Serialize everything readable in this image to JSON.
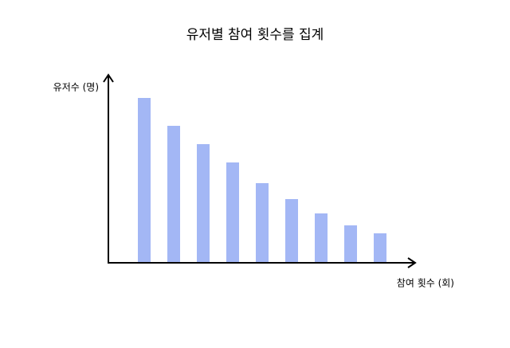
{
  "chart_data": {
    "type": "bar",
    "title": "유저별 참여 횟수를 집계",
    "y_label": "유저수 (명)",
    "x_label": "참여 횟수 (회)",
    "categories": [
      null,
      null,
      null,
      null,
      null,
      null,
      null,
      null,
      null
    ],
    "values": [
      207,
      172,
      149,
      126,
      100,
      80,
      62,
      47,
      37
    ],
    "color": "#a3b7f5",
    "ylim": [
      0,
      235
    ]
  }
}
